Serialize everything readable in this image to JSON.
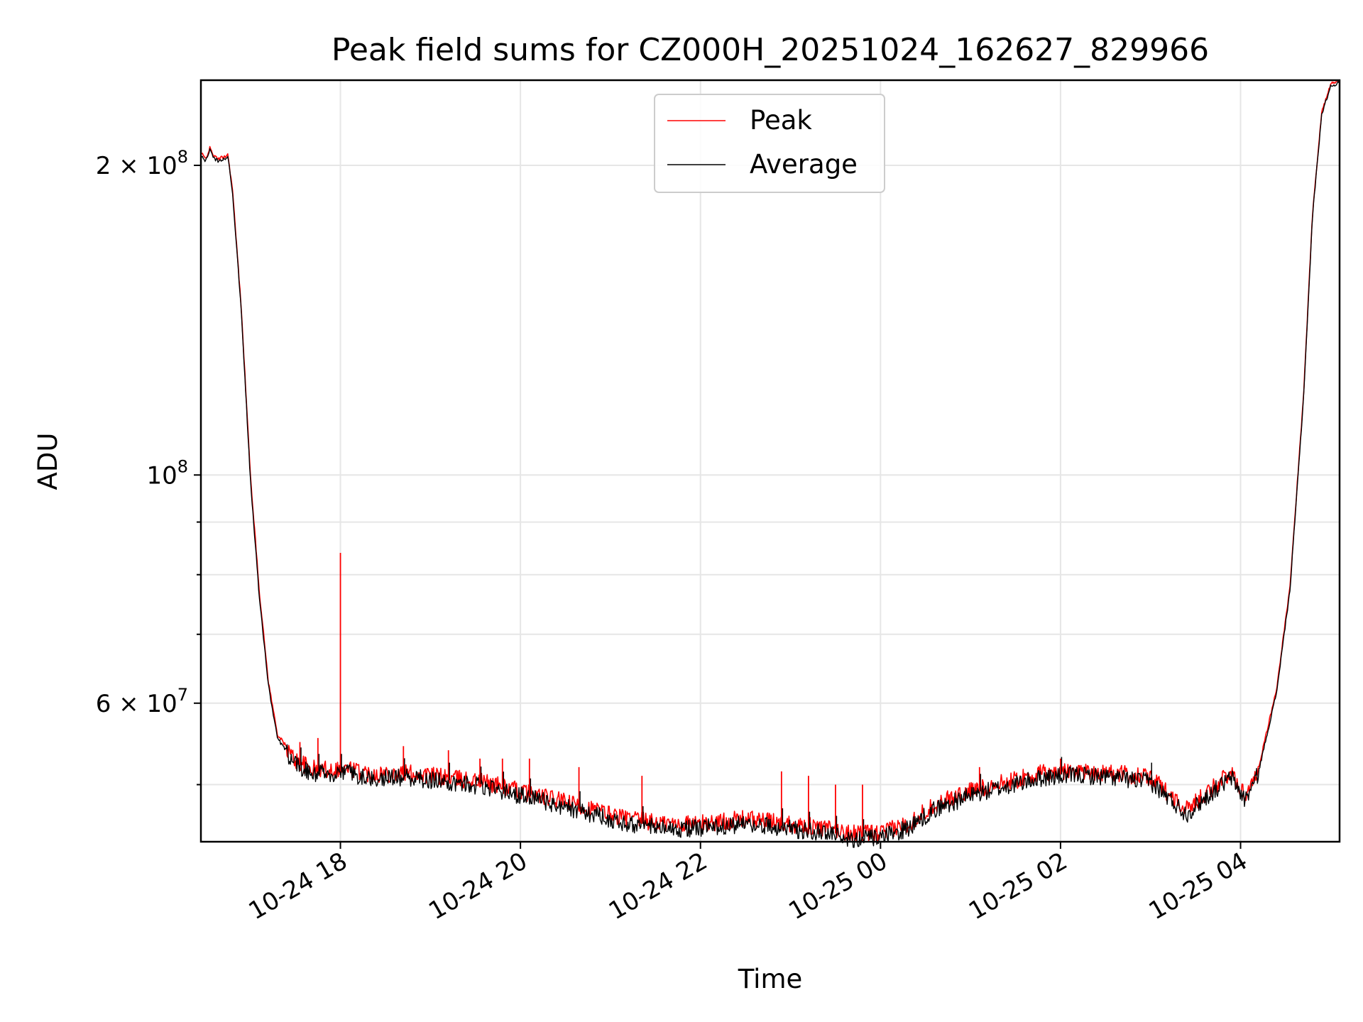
{
  "chart_data": {
    "type": "line",
    "title": "Peak field sums for CZ000H_20251024_162627_829966",
    "xlabel": "Time",
    "ylabel": "ADU",
    "yscale": "log",
    "ylim": [
      44000000,
      242000000
    ],
    "xlim_hours": [
      16.45,
      29.1
    ],
    "grid": true,
    "legend_position": "top-center",
    "x_ticks": [
      {
        "hours": 18,
        "label": "10-24 18"
      },
      {
        "hours": 20,
        "label": "10-24 20"
      },
      {
        "hours": 22,
        "label": "10-24 22"
      },
      {
        "hours": 24,
        "label": "10-25 00"
      },
      {
        "hours": 26,
        "label": "10-25 02"
      },
      {
        "hours": 28,
        "label": "10-25 04"
      }
    ],
    "y_major_ticks": [
      {
        "value": 200000000,
        "base": "2 × 10",
        "exp": "8"
      },
      {
        "value": 100000000,
        "base": "10",
        "exp": "8"
      },
      {
        "value": 60000000,
        "base": "6 × 10",
        "exp": "7"
      }
    ],
    "y_minor_ticks": [
      50000000,
      70000000,
      80000000,
      90000000
    ],
    "series": [
      {
        "name": "Peak",
        "color": "#ff0000",
        "x_hours": [
          16.45,
          16.5,
          16.55,
          16.6,
          16.65,
          16.75,
          16.8,
          16.9,
          17.0,
          17.1,
          17.2,
          17.3,
          17.5,
          17.7,
          17.9,
          18.1,
          18.3,
          18.5,
          18.8,
          19.2,
          19.6,
          20.0,
          20.4,
          20.8,
          21.2,
          21.6,
          22.0,
          22.5,
          23.0,
          23.4,
          23.7,
          24.0,
          24.3,
          24.6,
          25.0,
          25.4,
          25.8,
          26.2,
          26.6,
          27.0,
          27.4,
          27.7,
          27.9,
          28.05,
          28.2,
          28.4,
          28.55,
          28.7,
          28.8,
          28.9,
          29.0,
          29.1
        ],
        "values": [
          206000000,
          203000000,
          208000000,
          204000000,
          203000000,
          205000000,
          190000000,
          145000000,
          100000000,
          77000000,
          63000000,
          56000000,
          53000000,
          52000000,
          52000000,
          52000000,
          51500000,
          51500000,
          51500000,
          51000000,
          50500000,
          49500000,
          48500000,
          47500000,
          46500000,
          46000000,
          46000000,
          46500000,
          46000000,
          45500000,
          45000000,
          45000000,
          46000000,
          48000000,
          49500000,
          50500000,
          51500000,
          51800000,
          51500000,
          51000000,
          47500000,
          50000000,
          51500000,
          49000000,
          52000000,
          62000000,
          78000000,
          120000000,
          180000000,
          225000000,
          240000000,
          242000000
        ]
      },
      {
        "name": "Average",
        "color": "#000000",
        "x_hours": [
          16.45,
          16.5,
          16.55,
          16.6,
          16.65,
          16.75,
          16.8,
          16.9,
          17.0,
          17.1,
          17.2,
          17.3,
          17.5,
          17.7,
          17.9,
          18.1,
          18.3,
          18.5,
          18.8,
          19.2,
          19.6,
          20.0,
          20.4,
          20.8,
          21.2,
          21.6,
          22.0,
          22.5,
          23.0,
          23.4,
          23.7,
          24.0,
          24.3,
          24.6,
          25.0,
          25.4,
          25.8,
          26.2,
          26.6,
          27.0,
          27.4,
          27.7,
          27.9,
          28.05,
          28.2,
          28.4,
          28.55,
          28.7,
          28.8,
          28.9,
          29.0,
          29.1
        ],
        "values": [
          205000000,
          202000000,
          207000000,
          203000000,
          202000000,
          204000000,
          189000000,
          144000000,
          99000000,
          76000000,
          62500000,
          55500000,
          52500000,
          51500000,
          51500000,
          51500000,
          51000000,
          51000000,
          51000000,
          50500000,
          50000000,
          49000000,
          48000000,
          47000000,
          46000000,
          45500000,
          45500000,
          46000000,
          45500000,
          45000000,
          44500000,
          44500000,
          45500000,
          47500000,
          49000000,
          50000000,
          51000000,
          51300000,
          51000000,
          50500000,
          47000000,
          49500000,
          51000000,
          48500000,
          51500000,
          61500000,
          77500000,
          119000000,
          179000000,
          224000000,
          239000000,
          241000000
        ]
      }
    ],
    "spikes": [
      {
        "hours": 18.0,
        "value": 84000000
      },
      {
        "hours": 17.55,
        "value": 55000000
      },
      {
        "hours": 17.75,
        "value": 55500000
      },
      {
        "hours": 18.7,
        "value": 54500000
      },
      {
        "hours": 19.2,
        "value": 54000000
      },
      {
        "hours": 19.55,
        "value": 53000000
      },
      {
        "hours": 19.8,
        "value": 53000000
      },
      {
        "hours": 20.1,
        "value": 53000000
      },
      {
        "hours": 20.65,
        "value": 52000000
      },
      {
        "hours": 21.35,
        "value": 51000000
      },
      {
        "hours": 22.9,
        "value": 51500000
      },
      {
        "hours": 23.2,
        "value": 51000000
      },
      {
        "hours": 23.5,
        "value": 50000000
      },
      {
        "hours": 23.8,
        "value": 50000000
      },
      {
        "hours": 25.1,
        "value": 52000000
      },
      {
        "hours": 26.0,
        "value": 53000000
      },
      {
        "hours": 27.0,
        "value": 50000000
      }
    ]
  }
}
